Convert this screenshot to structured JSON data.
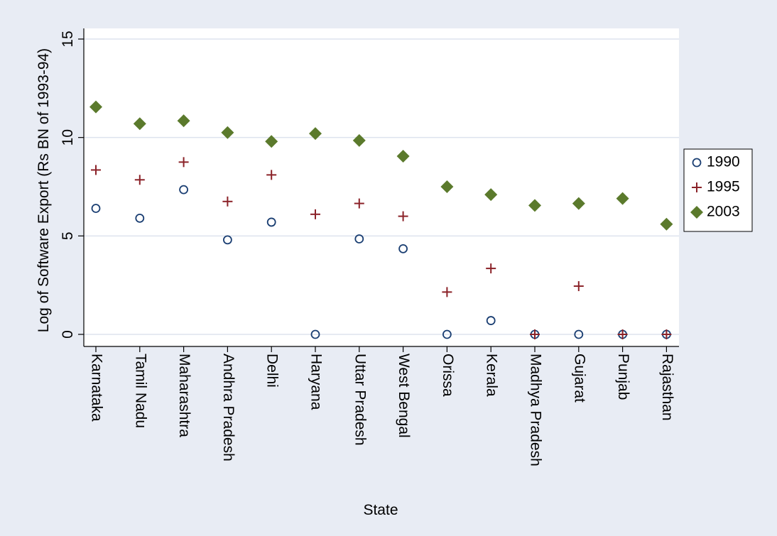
{
  "chart_data": {
    "type": "scatter",
    "xlabel": "State",
    "ylabel": "Log of Software Export (Rs BN of 1993-94)",
    "ylim": [
      0,
      15
    ],
    "yticks": [
      0,
      5,
      10,
      15
    ],
    "grid": true,
    "legend_position": "right",
    "categories": [
      "Karnataka",
      "Tamil Nadu",
      "Maharashtra",
      "Andhra Pradesh",
      "Delhi",
      "Haryana",
      "Uttar Pradesh",
      "West Bengal",
      "Orissa",
      "Kerala",
      "Madhya Pradesh",
      "Gujarat",
      "Punjab",
      "Rajasthan"
    ],
    "series": [
      {
        "name": "1990",
        "marker": "hollow-circle",
        "color": "#1a3e72",
        "values": [
          6.4,
          5.9,
          7.35,
          4.8,
          5.7,
          0,
          4.85,
          4.35,
          0,
          0.7,
          0,
          0,
          0,
          0
        ]
      },
      {
        "name": "1995",
        "marker": "plus",
        "color": "#8b2228",
        "values": [
          8.35,
          7.85,
          8.75,
          6.75,
          8.1,
          6.1,
          6.65,
          6.0,
          2.15,
          3.35,
          0,
          2.45,
          0,
          0
        ]
      },
      {
        "name": "2003",
        "marker": "diamond",
        "color": "#5b7a2c",
        "values": [
          11.55,
          10.7,
          10.85,
          10.25,
          9.8,
          10.2,
          9.85,
          9.05,
          7.5,
          7.1,
          6.55,
          6.65,
          6.9,
          5.6
        ]
      }
    ]
  },
  "colors": {
    "outer_background": "#e8ecf4",
    "plot_background": "#ffffff",
    "gridline": "#dde3ee"
  }
}
